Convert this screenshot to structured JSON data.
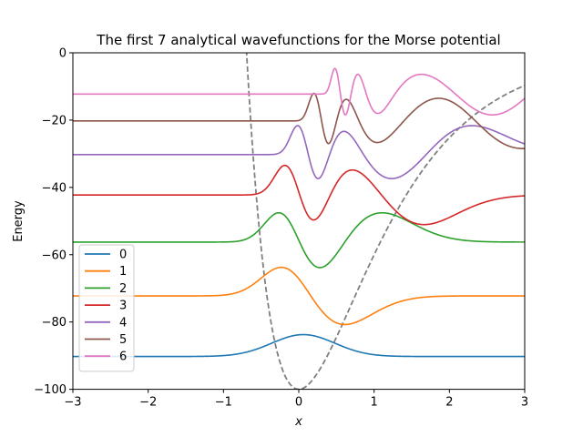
{
  "chart_data": {
    "type": "line",
    "title": "The first 7 analytical wavefunctions for the Morse potential",
    "xlabel": "x",
    "ylabel": "Energy",
    "xlim": [
      -3,
      3
    ],
    "ylim": [
      -100,
      0
    ],
    "xticks": [
      -3,
      -2,
      -1,
      0,
      1,
      2,
      3
    ],
    "xtick_labels": [
      "−3",
      "−2",
      "−1",
      "0",
      "1",
      "2",
      "3"
    ],
    "yticks": [
      -100,
      -80,
      -60,
      -40,
      -20,
      0
    ],
    "ytick_labels": [
      "−100",
      "−80",
      "−60",
      "−40",
      "−20",
      "0"
    ],
    "grid": false,
    "legend_position": "lower-left",
    "potential": {
      "style": "dashed",
      "color": "#808080",
      "depth": 100,
      "a": 1,
      "x0": 0
    },
    "series": [
      {
        "name": "0",
        "n": 0,
        "energy": -90.25,
        "color": "#1f77b4"
      },
      {
        "name": "1",
        "n": 1,
        "energy": -72.25,
        "color": "#ff7f0e"
      },
      {
        "name": "2",
        "n": 2,
        "energy": -56.25,
        "color": "#2ca02c"
      },
      {
        "name": "3",
        "n": 3,
        "energy": -42.25,
        "color": "#d62728"
      },
      {
        "name": "4",
        "n": 4,
        "energy": -30.25,
        "color": "#9467bd"
      },
      {
        "name": "5",
        "n": 5,
        "energy": -20.25,
        "color": "#8c564b"
      },
      {
        "name": "6",
        "n": 6,
        "energy": -12.25,
        "color": "#e377c2"
      }
    ]
  }
}
